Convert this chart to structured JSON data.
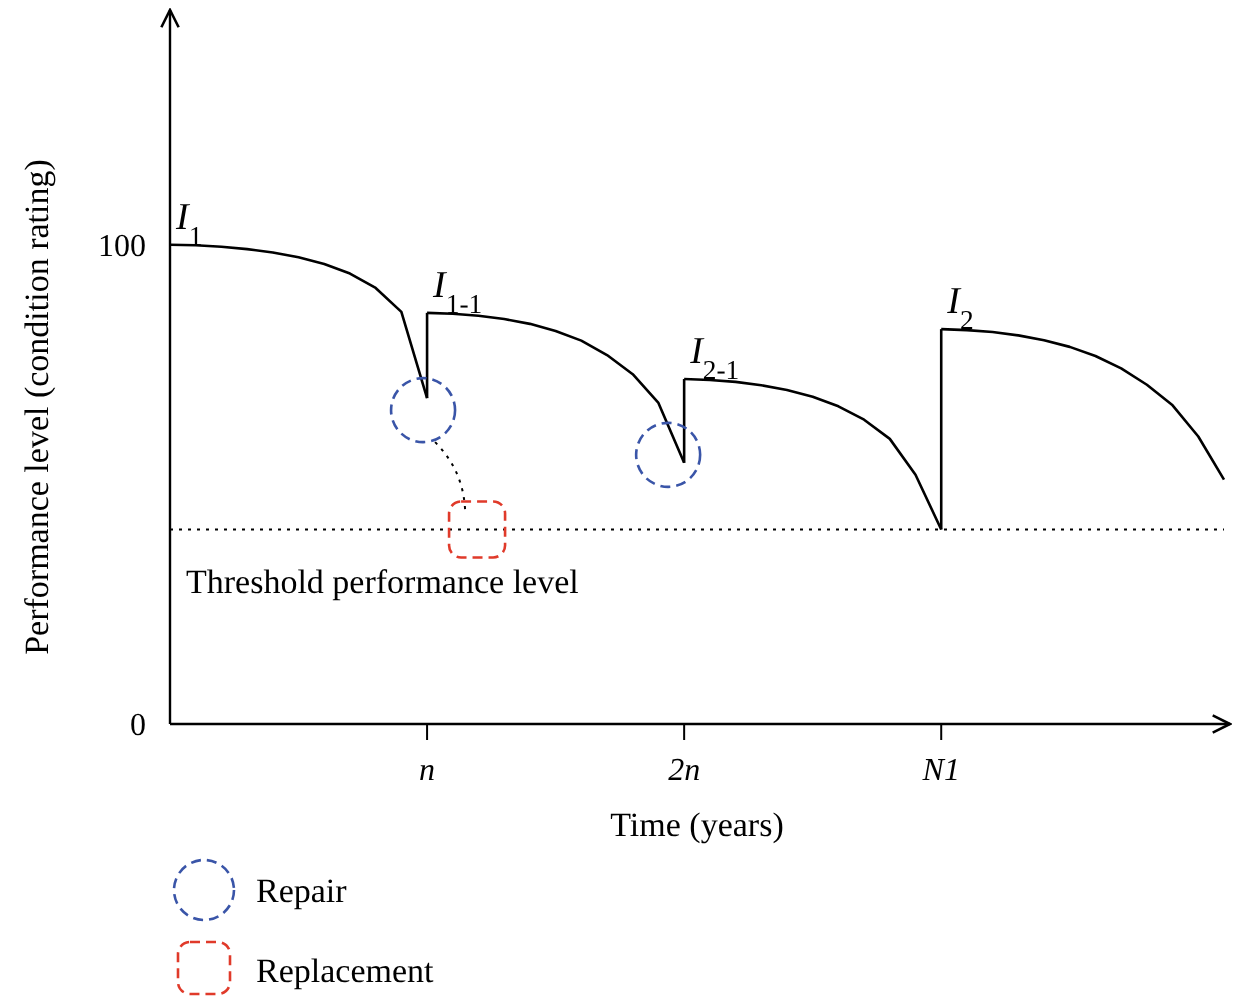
{
  "chart_data": {
    "type": "line",
    "xlabel": "Time (years)",
    "ylabel": "Performance level (condition rating)",
    "categories": [
      null,
      null,
      null,
      null,
      null,
      null,
      null,
      null,
      null,
      null,
      "n",
      null,
      null,
      null,
      null,
      null,
      null,
      null,
      null,
      null,
      "2n",
      null,
      null,
      null,
      null,
      null,
      null,
      null,
      null,
      null,
      "N1",
      null,
      null,
      null,
      null,
      null,
      null,
      null,
      null,
      null,
      null,
      null
    ],
    "series": [
      {
        "color": "#000000",
        "values": [
          100,
          99.9,
          99.6,
          99.1,
          98.4,
          97.4,
          96,
          94,
          91,
          86,
          68,
          null,
          null,
          null,
          null,
          null,
          null,
          null,
          null,
          null,
          null,
          null,
          null,
          null,
          null,
          null,
          null,
          null,
          null,
          null,
          null,
          null,
          null,
          null,
          null,
          null,
          null,
          null,
          null,
          null,
          null,
          null
        ]
      },
      {
        "color": "#000000",
        "values": [
          null,
          null,
          null,
          null,
          null,
          null,
          null,
          null,
          null,
          null,
          85.8,
          85.6,
          85.2,
          84.5,
          83.5,
          82,
          80,
          77,
          73,
          67,
          54.5,
          null,
          null,
          null,
          null,
          null,
          null,
          null,
          null,
          null,
          null,
          null,
          null,
          null,
          null,
          null,
          null,
          null,
          null,
          null,
          null,
          null
        ]
      },
      {
        "color": "#000000",
        "values": [
          null,
          null,
          null,
          null,
          null,
          null,
          null,
          null,
          null,
          null,
          null,
          null,
          null,
          null,
          null,
          null,
          null,
          null,
          null,
          null,
          72,
          71.8,
          71.4,
          70.7,
          69.7,
          68.3,
          66.3,
          63.5,
          59.5,
          52,
          40.6,
          null,
          null,
          null,
          null,
          null,
          null,
          null,
          null,
          null,
          null,
          null
        ]
      },
      {
        "color": "#000000",
        "values": [
          null,
          null,
          null,
          null,
          null,
          null,
          null,
          null,
          null,
          null,
          null,
          null,
          null,
          null,
          null,
          null,
          null,
          null,
          null,
          null,
          null,
          null,
          null,
          null,
          null,
          null,
          null,
          null,
          null,
          null,
          82.4,
          82.2,
          81.8,
          81.1,
          80.1,
          78.7,
          76.8,
          74.2,
          70.8,
          66.5,
          60,
          51
        ]
      }
    ],
    "ylim": [
      0,
      149
    ],
    "yticks": [
      0,
      100
    ],
    "grid": false,
    "marker": "none",
    "line_style": "solid",
    "ref_lines": [
      {
        "axis": "y",
        "value": 40.6,
        "label": "Threshold performance level",
        "line_style": "dotted",
        "color": "#000000"
      }
    ],
    "annotations": [
      {
        "text": "I$_{1}$",
        "y": 100
      },
      {
        "text": "I$_{1-1}$",
        "x": "n",
        "y": 85.8
      },
      {
        "text": "I$_{2-1}$",
        "x": "2n",
        "y": 72
      },
      {
        "text": "I$_{2}$",
        "x": "N1",
        "y": 82.4
      },
      "Repair",
      "Replacement"
    ]
  }
}
